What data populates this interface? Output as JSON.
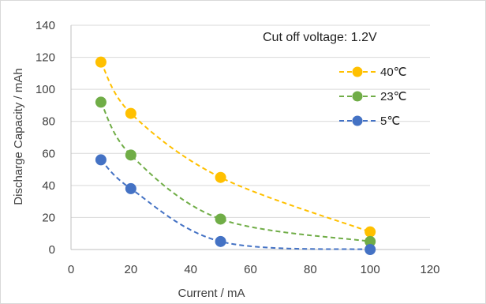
{
  "chart_data": {
    "type": "scatter",
    "title": "",
    "xlabel": "Current / mA",
    "ylabel": "Discharge Capacity / mAh",
    "xlim": [
      0,
      120
    ],
    "ylim": [
      0,
      140
    ],
    "x_ticks": [
      "0",
      "20",
      "40",
      "60",
      "80",
      "100",
      "120"
    ],
    "y_ticks": [
      "0",
      "20",
      "40",
      "60",
      "80",
      "100",
      "120",
      "140"
    ],
    "grid": "horizontal",
    "annotation": "Cut off voltage: 1.2V",
    "legend_position": "top-right",
    "series": [
      {
        "name": "40℃",
        "color": "#FFC000",
        "trendline": "dashed",
        "x": [
          10,
          20,
          50,
          100
        ],
        "y": [
          117,
          85,
          45,
          11
        ]
      },
      {
        "name": "23℃",
        "color": "#70AD47",
        "trendline": "dashed",
        "x": [
          10,
          20,
          50,
          100
        ],
        "y": [
          92,
          59,
          19,
          5
        ]
      },
      {
        "name": "5℃",
        "color": "#4472C4",
        "trendline": "dashed",
        "x": [
          10,
          20,
          50,
          100
        ],
        "y": [
          56,
          38,
          5,
          0
        ]
      }
    ]
  }
}
